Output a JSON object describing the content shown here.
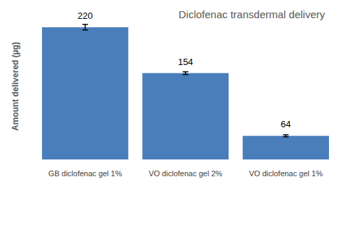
{
  "chart_data": {
    "type": "bar",
    "title": "Diclofenac transdermal delivery",
    "y_label": "Amount delivered (µg)",
    "categories": [
      "GB diclofenac gel 1%",
      "VO diclofenac gel 2%",
      "VO diclofenac gel 1%"
    ],
    "values": [
      220,
      154,
      64
    ],
    "errors": [
      4,
      2,
      1.5
    ],
    "color": "#4a7ebb",
    "ylim": [
      30,
      240
    ],
    "grid": false,
    "data_labels": true,
    "tick_labels": "x"
  }
}
